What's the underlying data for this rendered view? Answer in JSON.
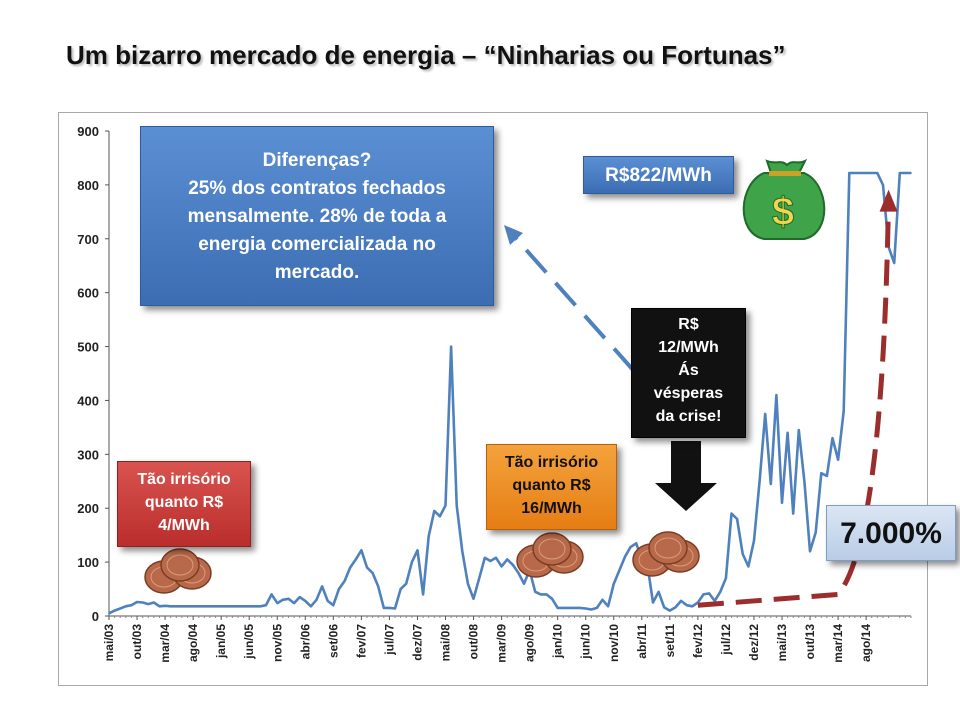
{
  "slide": {
    "title": "Um bizarro mercado de energia – “Ninharias ou Fortunas”"
  },
  "annotations": {
    "blue_callout": [
      "Diferenças?",
      "25% dos contratos  fechados",
      "mensalmente. 28% de toda a",
      "energia comercializada no",
      "mercado."
    ],
    "price_high": "R$822/MWh",
    "crisis_callout": [
      "R$",
      "12/MWh",
      "Ás",
      "vésperas",
      "da crise!"
    ],
    "red_callout": [
      "Tão irrisório",
      "quanto R$",
      "4/MWh"
    ],
    "orange_callout": [
      "Tão irrisório",
      "quanto R$",
      "16/MWh"
    ],
    "percent_box": "7.000%"
  },
  "icons": [
    "money-bag-icon",
    "coin-pile-icon",
    "down-arrow-icon",
    "up-trend-arrow-icon"
  ],
  "colors": {
    "line": "#4f81bd",
    "trend_arrow": "#9b2d2d",
    "callout_blue": "#4a7cc2",
    "callout_red": "#c9413e",
    "callout_orange": "#ee8f2a",
    "money_bag": "#3fa34a"
  },
  "chart_data": {
    "type": "line",
    "title": "",
    "xlabel": "",
    "ylabel": "",
    "ylim": [
      0,
      900
    ],
    "yticks": [
      0,
      100,
      200,
      300,
      400,
      500,
      600,
      700,
      800,
      900
    ],
    "grid": false,
    "legend": "none",
    "x_tick_labels": [
      "mai/03",
      "out/03",
      "mar/04",
      "ago/04",
      "jan/05",
      "jun/05",
      "nov/05",
      "abr/06",
      "set/06",
      "fev/07",
      "jul/07",
      "dez/07",
      "mai/08",
      "out/08",
      "mar/09",
      "ago/09",
      "jan/10",
      "jun/10",
      "nov/10",
      "abr/11",
      "set/11",
      "fev/12",
      "jul/12",
      "dez/12",
      "mai/13",
      "out/13",
      "mar/14",
      "ago/14"
    ],
    "x_start": "mai/03",
    "x_end": "dez/14",
    "values": [
      5,
      10,
      14,
      18,
      20,
      26,
      25,
      22,
      25,
      18,
      19,
      18,
      18,
      18,
      18,
      18,
      18,
      18,
      18,
      18,
      18,
      18,
      18,
      18,
      18,
      18,
      18,
      18,
      20,
      40,
      24,
      30,
      32,
      24,
      35,
      28,
      18,
      30,
      55,
      28,
      20,
      50,
      65,
      90,
      105,
      122,
      90,
      80,
      55,
      15,
      15,
      14,
      50,
      60,
      100,
      122,
      40,
      148,
      195,
      185,
      205,
      500,
      205,
      120,
      60,
      32,
      70,
      108,
      102,
      108,
      92,
      105,
      95,
      80,
      60,
      85,
      45,
      40,
      40,
      32,
      15,
      15,
      15,
      15,
      15,
      14,
      12,
      15,
      30,
      18,
      60,
      85,
      110,
      128,
      135,
      105,
      95,
      25,
      45,
      16,
      10,
      16,
      28,
      20,
      18,
      25,
      40,
      42,
      28,
      45,
      70,
      190,
      180,
      115,
      92,
      140,
      250,
      375,
      245,
      410,
      210,
      340,
      190,
      345,
      250,
      120,
      155,
      265,
      260,
      330,
      290,
      380,
      822,
      822,
      822,
      822,
      822,
      822,
      800,
      685,
      655,
      822,
      822,
      822
    ],
    "series_name": "",
    "trend_arrow": {
      "from": "fev/12",
      "to": "dez/14",
      "label": "7.000%"
    }
  }
}
